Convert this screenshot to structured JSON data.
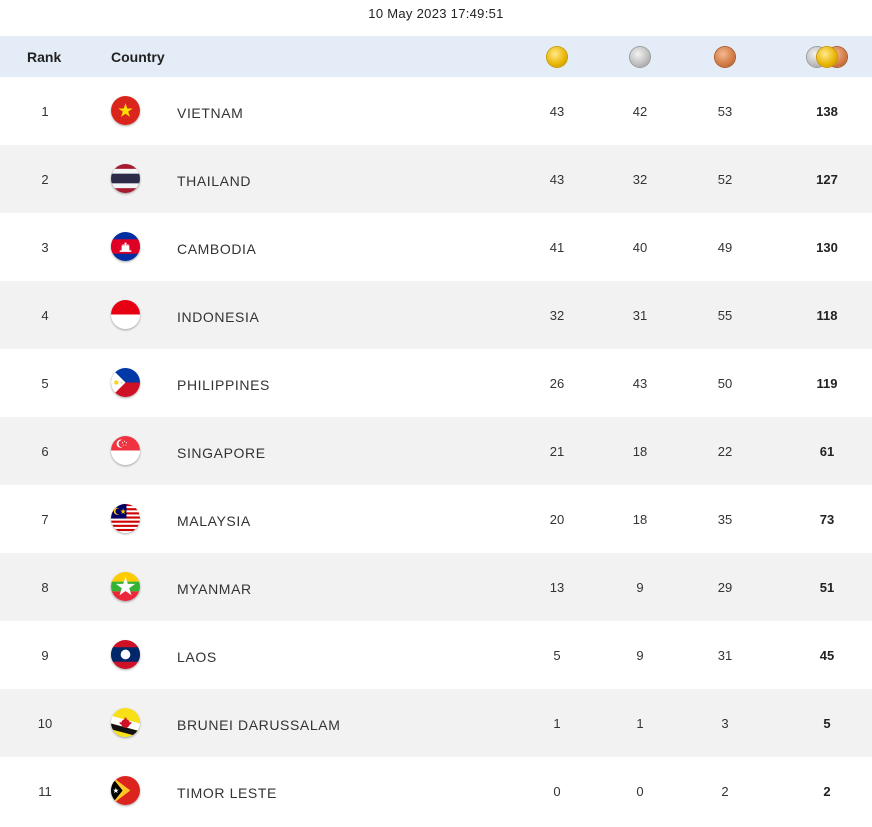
{
  "timestamp": "10 May 2023  17:49:51",
  "header": {
    "rank_label": "Rank",
    "country_label": "Country",
    "icons": [
      "gold-medal-icon",
      "silver-medal-icon",
      "bronze-medal-icon",
      "total-medals-icon"
    ]
  },
  "colors": {
    "header_bg": "#e4ecf7",
    "alt_row_bg": "#f2f2f2"
  },
  "rows": [
    {
      "rank": "1",
      "country": "VIETNAM",
      "flag": "vietnam-flag-icon",
      "gold": "43",
      "silver": "42",
      "bronze": "53",
      "total": "138"
    },
    {
      "rank": "2",
      "country": "THAILAND",
      "flag": "thailand-flag-icon",
      "gold": "43",
      "silver": "32",
      "bronze": "52",
      "total": "127"
    },
    {
      "rank": "3",
      "country": "CAMBODIA",
      "flag": "cambodia-flag-icon",
      "gold": "41",
      "silver": "40",
      "bronze": "49",
      "total": "130"
    },
    {
      "rank": "4",
      "country": "INDONESIA",
      "flag": "indonesia-flag-icon",
      "gold": "32",
      "silver": "31",
      "bronze": "55",
      "total": "118"
    },
    {
      "rank": "5",
      "country": "PHILIPPINES",
      "flag": "philippines-flag-icon",
      "gold": "26",
      "silver": "43",
      "bronze": "50",
      "total": "119"
    },
    {
      "rank": "6",
      "country": "SINGAPORE",
      "flag": "singapore-flag-icon",
      "gold": "21",
      "silver": "18",
      "bronze": "22",
      "total": "61"
    },
    {
      "rank": "7",
      "country": "MALAYSIA",
      "flag": "malaysia-flag-icon",
      "gold": "20",
      "silver": "18",
      "bronze": "35",
      "total": "73"
    },
    {
      "rank": "8",
      "country": "MYANMAR",
      "flag": "myanmar-flag-icon",
      "gold": "13",
      "silver": "9",
      "bronze": "29",
      "total": "51"
    },
    {
      "rank": "9",
      "country": "LAOS",
      "flag": "laos-flag-icon",
      "gold": "5",
      "silver": "9",
      "bronze": "31",
      "total": "45"
    },
    {
      "rank": "10",
      "country": "BRUNEI DARUSSALAM",
      "flag": "brunei-flag-icon",
      "gold": "1",
      "silver": "1",
      "bronze": "3",
      "total": "5"
    },
    {
      "rank": "11",
      "country": "TIMOR LESTE",
      "flag": "timor-leste-flag-icon",
      "gold": "0",
      "silver": "0",
      "bronze": "2",
      "total": "2"
    }
  ]
}
